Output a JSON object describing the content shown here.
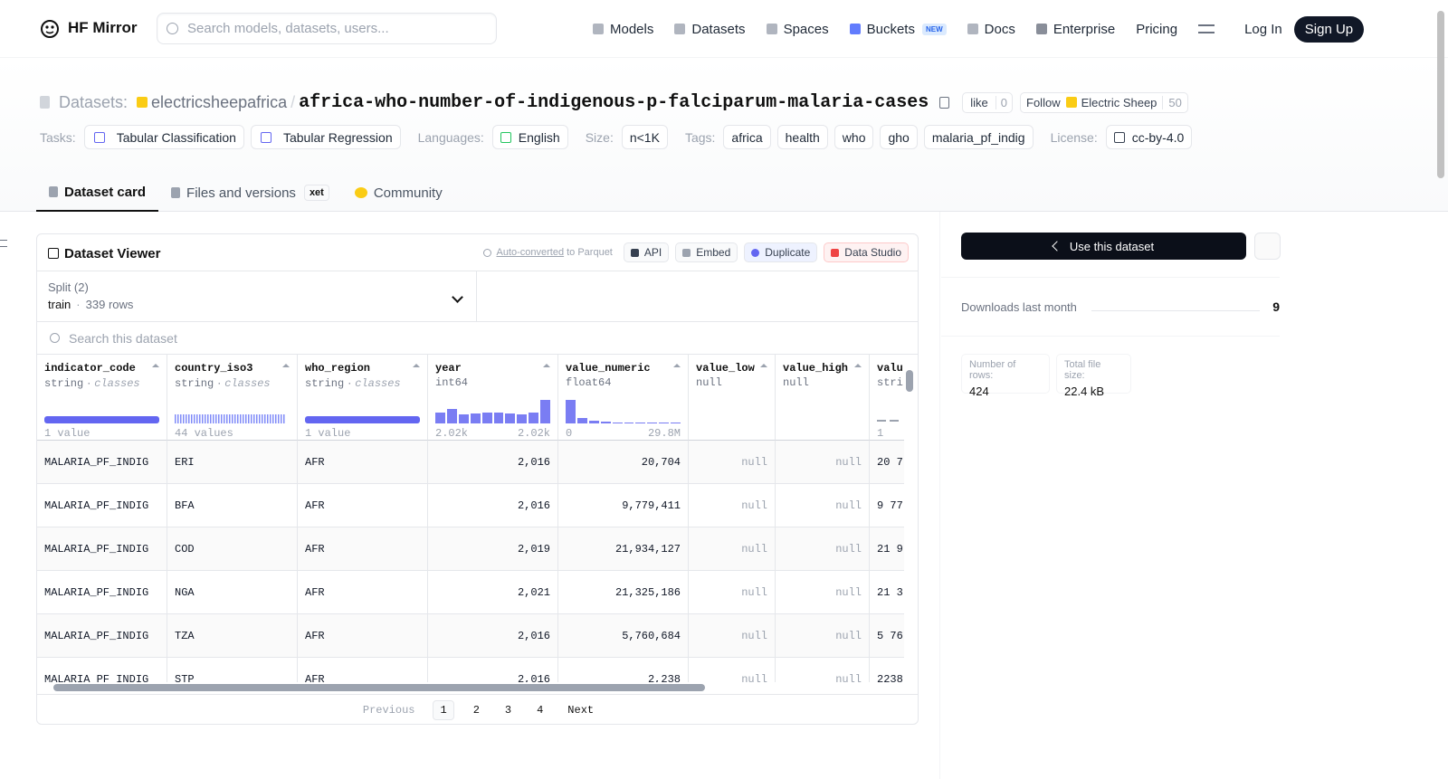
{
  "nav": {
    "brand": "HF Mirror",
    "search_placeholder": "Search models, datasets, users...",
    "links": [
      "Models",
      "Datasets",
      "Spaces",
      "Buckets",
      "Docs",
      "Enterprise",
      "Pricing"
    ],
    "new_badge": "NEW",
    "login": "Log In",
    "signup": "Sign Up"
  },
  "header": {
    "section": "Datasets:",
    "owner": "electricsheepafrica",
    "separator": "/",
    "name": "africa-who-number-of-indigenous-p-falciparum-malaria-cases",
    "like": "like",
    "like_count": 0,
    "follow": "Follow",
    "org": "Electric Sheep",
    "followers": 50
  },
  "tag_groups": [
    {
      "label": "Tasks:",
      "items": [
        "Tabular Classification",
        "Tabular Regression"
      ]
    },
    {
      "label": "Languages:",
      "items": [
        "English"
      ]
    },
    {
      "label": "Size:",
      "items": [
        "n<1K"
      ]
    },
    {
      "label": "Tags:",
      "items": [
        "africa",
        "health",
        "who",
        "gho",
        "malaria_pf_indig"
      ]
    },
    {
      "label": "License:",
      "items": [
        "cc-by-4.0"
      ]
    }
  ],
  "tabs": {
    "items": [
      "Dataset card",
      "Files and versions",
      "Community"
    ],
    "xet": "xet"
  },
  "viewer": {
    "title": "Dataset Viewer",
    "auto_converted": "Auto-converted",
    "to_parquet": "to Parquet",
    "actions": [
      "API",
      "Embed",
      "Duplicate",
      "Data Studio"
    ],
    "split_label": "Split (2)",
    "split": "train",
    "separator": "·",
    "rows_count": "339 rows",
    "search_placeholder": "Search this dataset",
    "columns": [
      {
        "name": "indicator_code",
        "dtype": "string",
        "kind": "classes",
        "viz": "full",
        "summary": "1 value"
      },
      {
        "name": "country_iso3",
        "dtype": "string",
        "kind": "classes",
        "viz": "stripes",
        "summary": "44 values"
      },
      {
        "name": "who_region",
        "dtype": "string",
        "kind": "classes",
        "viz": "full",
        "summary": "1 value"
      },
      {
        "name": "year",
        "dtype": "int64",
        "viz": "hist",
        "hist": [
          12,
          15,
          10,
          11,
          12,
          12,
          11,
          10,
          12,
          25
        ],
        "min": "2.02k",
        "max": "2.02k"
      },
      {
        "name": "value_numeric",
        "dtype": "float64",
        "viz": "hist",
        "hist": [
          24,
          6,
          3,
          2,
          1,
          1,
          1,
          1,
          1,
          1
        ],
        "min": "0",
        "max": "29.8M"
      },
      {
        "name": "value_low",
        "dtype": "null"
      },
      {
        "name": "value_high",
        "dtype": "null"
      },
      {
        "name": "valu",
        "dtype": "stri",
        "viz": "dashes",
        "summary": "1"
      }
    ],
    "rows": [
      [
        "MALARIA_PF_INDIG",
        "ERI",
        "AFR",
        "2,016",
        "20,704",
        "null",
        "null",
        "20 7"
      ],
      [
        "MALARIA_PF_INDIG",
        "BFA",
        "AFR",
        "2,016",
        "9,779,411",
        "null",
        "null",
        "9 77"
      ],
      [
        "MALARIA_PF_INDIG",
        "COD",
        "AFR",
        "2,019",
        "21,934,127",
        "null",
        "null",
        "21 9"
      ],
      [
        "MALARIA_PF_INDIG",
        "NGA",
        "AFR",
        "2,021",
        "21,325,186",
        "null",
        "null",
        "21 3"
      ],
      [
        "MALARIA_PF_INDIG",
        "TZA",
        "AFR",
        "2,016",
        "5,760,684",
        "null",
        "null",
        "5 76"
      ],
      [
        "MALARIA_PF_INDIG",
        "STP",
        "AFR",
        "2,016",
        "2,238",
        "null",
        "null",
        "2238"
      ]
    ],
    "pagination": {
      "previous": "Previous",
      "pages": [
        1,
        2,
        3,
        4
      ],
      "next": "Next"
    }
  },
  "sidebar": {
    "use_dataset": "Use this dataset",
    "downloads_label": "Downloads last month",
    "downloads": 9,
    "rows_label": "Number of rows:",
    "rows": 424,
    "size_label": "Total file size:",
    "size": "22.4 kB"
  }
}
